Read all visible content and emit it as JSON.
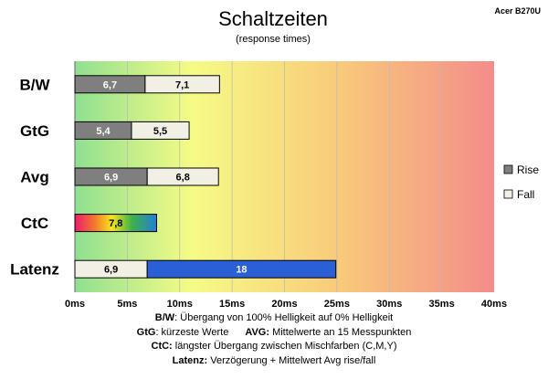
{
  "brand_label": "Acer B270U",
  "chart_data": {
    "type": "bar",
    "orientation": "horizontal",
    "stacked": true,
    "title": "Schaltzeiten",
    "subtitle": "(response times)",
    "categories": [
      "B/W",
      "GtG",
      "Avg",
      "CtC",
      "Latenz"
    ],
    "series": [
      {
        "name": "Rise",
        "color": "#7f7f7f",
        "values": [
          6.7,
          5.4,
          6.9,
          null,
          null
        ],
        "labels": [
          "6,7",
          "5,4",
          "6,9",
          "",
          ""
        ]
      },
      {
        "name": "Fall",
        "color": "#f2efe4",
        "values": [
          7.1,
          5.5,
          6.8,
          null,
          6.9
        ],
        "labels": [
          "7,1",
          "5,5",
          "6,8",
          "",
          "6,9"
        ]
      },
      {
        "name": "",
        "color": "rainbow",
        "values": [
          null,
          null,
          null,
          7.8,
          null
        ],
        "labels": [
          "",
          "",
          "",
          "7,8",
          ""
        ]
      },
      {
        "name": "",
        "color": "#2a5fd6",
        "values": [
          null,
          null,
          null,
          null,
          18
        ],
        "labels": [
          "",
          "",
          "",
          "",
          "18"
        ]
      }
    ],
    "x_ticks": [
      "0ms",
      "5ms",
      "10ms",
      "15ms",
      "20ms",
      "25ms",
      "30ms",
      "35ms",
      "40ms"
    ],
    "xlim": [
      0,
      40
    ],
    "grid": true,
    "background": "gradient green-yellow-orange-red",
    "legend_position": "right",
    "legend": [
      {
        "label": "Rise",
        "color": "#7f7f7f"
      },
      {
        "label": "Fall",
        "color": "#f2efe4"
      }
    ]
  },
  "notes": {
    "line1_key": "B/W",
    "line1_text": ":  Übergang von 100% Helligkeit auf 0% Helligkeit",
    "line2a_key": "GtG",
    "line2a_text": ": kürzeste  Werte",
    "line2b_key": "AVG:",
    "line2b_text": " Mittelwerte  an 15 Messpunkten",
    "line3_key": "CtC:",
    "line3_text": " längster Übergang  zwischen Mischfarben (C,M,Y)",
    "line4_key": "Latenz:",
    "line4_text": " Verzögerung  + Mittelwert  Avg rise/fall"
  }
}
